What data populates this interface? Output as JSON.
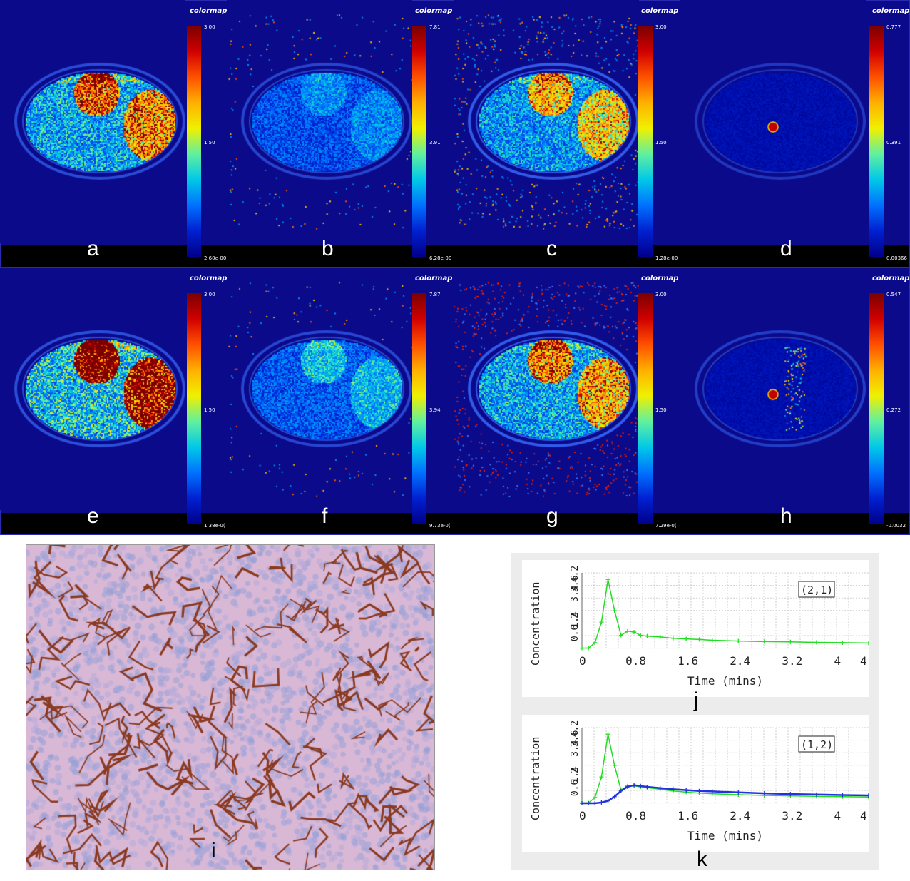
{
  "mri_panels": [
    {
      "id": "a",
      "letter": "a",
      "colormap": {
        "title": "colormap",
        "max": "3.00",
        "mid": "1.50",
        "min": "2.60e-00"
      }
    },
    {
      "id": "b",
      "letter": "b",
      "colormap": {
        "title": "colormap",
        "max": "7.81",
        "mid": "3.91",
        "min": "6.28e-00"
      }
    },
    {
      "id": "c",
      "letter": "c",
      "colormap": {
        "title": "colormap",
        "max": "3.00",
        "mid": "1.50",
        "min": "1.28e-00"
      }
    },
    {
      "id": "d",
      "letter": "d",
      "colormap": {
        "title": "colormap",
        "max": "0.777",
        "mid": "0.391",
        "min": "0.00366"
      }
    },
    {
      "id": "e",
      "letter": "e",
      "colormap": {
        "title": "colormap",
        "max": "3.00",
        "mid": "1.50",
        "min": "1.38e-0("
      }
    },
    {
      "id": "f",
      "letter": "f",
      "colormap": {
        "title": "colormap",
        "max": "7.87",
        "mid": "3.94",
        "min": "9.73e-0("
      }
    },
    {
      "id": "g",
      "letter": "g",
      "colormap": {
        "title": "colormap",
        "max": "3.00",
        "mid": "1.50",
        "min": "7.29e-0("
      }
    },
    {
      "id": "h",
      "letter": "h",
      "colormap": {
        "title": "colormap",
        "max": "0.547",
        "mid": "0.272",
        "min": "-0.0032"
      }
    }
  ],
  "histology": {
    "letter": "i"
  },
  "chart_data": [
    {
      "type": "line",
      "panel_letter": "j",
      "badge": "(2,1)",
      "xlabel": "Time (mins)",
      "ylabel": "Concentration",
      "x_ticks": [
        "0",
        "0.8",
        "1.6",
        "2.4",
        "3.2",
        "4",
        "4."
      ],
      "y_ticks": [
        "0.6",
        "1.4",
        "2",
        "3.4",
        "3.6",
        "4.2"
      ],
      "xlim": [
        0,
        4.4
      ],
      "ylim": [
        0,
        4.6
      ],
      "series": [
        {
          "color": "#22dd22",
          "x": [
            0,
            0.1,
            0.2,
            0.3,
            0.4,
            0.5,
            0.6,
            0.7,
            0.8,
            0.9,
            1.0,
            1.2,
            1.4,
            1.6,
            1.8,
            2.0,
            2.4,
            2.8,
            3.2,
            3.6,
            4.0,
            4.4
          ],
          "values": [
            0.02,
            0.02,
            0.35,
            1.6,
            4.2,
            2.3,
            0.8,
            1.05,
            1.0,
            0.8,
            0.75,
            0.7,
            0.62,
            0.58,
            0.55,
            0.5,
            0.45,
            0.42,
            0.4,
            0.37,
            0.35,
            0.33
          ]
        }
      ]
    },
    {
      "type": "line",
      "panel_letter": "k",
      "badge": "(1,2)",
      "xlabel": "Time (mins)",
      "ylabel": "Concentration",
      "x_ticks": [
        "0",
        "0.8",
        "1.6",
        "2.4",
        "3.2",
        "4",
        "4."
      ],
      "y_ticks": [
        "0.6",
        "1.4",
        "2",
        "3.4",
        "3.6",
        "4.2"
      ],
      "xlim": [
        0,
        4.4
      ],
      "ylim": [
        0,
        4.6
      ],
      "series": [
        {
          "color": "#22dd22",
          "x": [
            0,
            0.1,
            0.2,
            0.3,
            0.4,
            0.5,
            0.6,
            0.7,
            0.8,
            0.9,
            1.0,
            1.2,
            1.4,
            1.6,
            1.8,
            2.0,
            2.4,
            2.8,
            3.2,
            3.6,
            4.0,
            4.4
          ],
          "values": [
            0.02,
            0.02,
            0.35,
            1.6,
            4.2,
            2.3,
            0.8,
            1.05,
            1.05,
            1.0,
            0.95,
            0.85,
            0.75,
            0.68,
            0.62,
            0.58,
            0.52,
            0.48,
            0.45,
            0.42,
            0.4,
            0.38
          ]
        },
        {
          "color": "#2233dd",
          "x": [
            0,
            0.1,
            0.2,
            0.3,
            0.4,
            0.5,
            0.6,
            0.7,
            0.8,
            0.9,
            1.0,
            1.2,
            1.4,
            1.6,
            1.8,
            2.0,
            2.4,
            2.8,
            3.2,
            3.6,
            4.0,
            4.4
          ],
          "values": [
            0.0,
            0.0,
            0.0,
            0.05,
            0.15,
            0.4,
            0.75,
            1.0,
            1.1,
            1.05,
            1.0,
            0.92,
            0.85,
            0.8,
            0.75,
            0.72,
            0.66,
            0.6,
            0.56,
            0.53,
            0.5,
            0.48
          ]
        }
      ]
    }
  ]
}
